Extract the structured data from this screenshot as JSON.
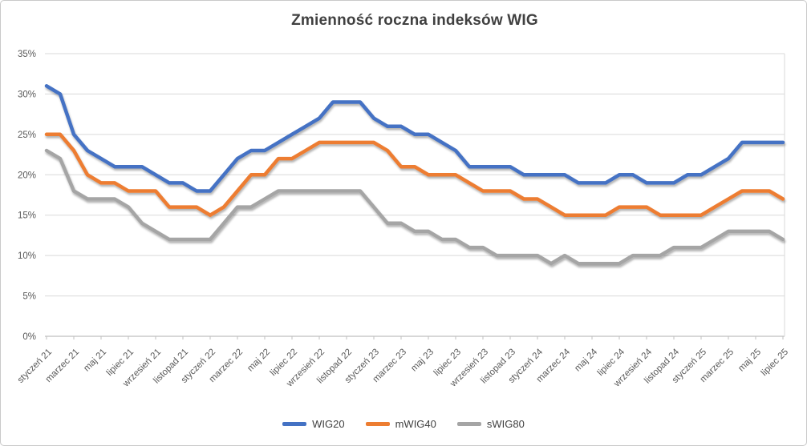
{
  "chart": {
    "title": "Zmienność roczna indeksów WIG"
  },
  "chart_data": {
    "type": "line",
    "title": "Zmienność roczna indeksów WIG",
    "x_tick_labels": [
      "styczeń 21",
      "marzec 21",
      "maj 21",
      "lipiec 21",
      "wrzesień 21",
      "listopad 21",
      "styczeń 22",
      "marzec 22",
      "maj 22",
      "lipiec 22",
      "wrzesień 22",
      "listopad 22",
      "styczeń 23",
      "marzec 23",
      "maj 23",
      "lipiec 23",
      "wrzesień 23",
      "listopad 23",
      "styczeń 24",
      "marzec 24",
      "maj 24",
      "lipiec 24",
      "wrzesień 24",
      "listopad 24",
      "styczeń 25",
      "marzec 25",
      "maj 25",
      "lipiec 25"
    ],
    "points_per_tick": 2,
    "y_tick_labels": [
      "0%",
      "5%",
      "10%",
      "15%",
      "20%",
      "25%",
      "30%",
      "35%"
    ],
    "ylim": [
      0,
      35
    ],
    "y_unit": "%",
    "grid": true,
    "legend_position": "bottom",
    "series": [
      {
        "name": "WIG20",
        "color": "#4472C4",
        "values": [
          31,
          30,
          25,
          23,
          22,
          21,
          21,
          21,
          20,
          19,
          19,
          18,
          18,
          20,
          22,
          23,
          23,
          24,
          25,
          26,
          27,
          29,
          29,
          29,
          27,
          26,
          26,
          25,
          25,
          24,
          23,
          21,
          21,
          21,
          21,
          20,
          20,
          20,
          20,
          19,
          19,
          19,
          20,
          20,
          19,
          19,
          19,
          20,
          20,
          21,
          22,
          24,
          24,
          24,
          24
        ]
      },
      {
        "name": "mWIG40",
        "color": "#ED7D31",
        "values": [
          25,
          25,
          23,
          20,
          19,
          19,
          18,
          18,
          18,
          16,
          16,
          16,
          15,
          16,
          18,
          20,
          20,
          22,
          22,
          23,
          24,
          24,
          24,
          24,
          24,
          23,
          21,
          21,
          20,
          20,
          20,
          19,
          18,
          18,
          18,
          17,
          17,
          16,
          15,
          15,
          15,
          15,
          16,
          16,
          16,
          15,
          15,
          15,
          15,
          16,
          17,
          18,
          18,
          18,
          17
        ]
      },
      {
        "name": "sWIG80",
        "color": "#A5A5A5",
        "values": [
          23,
          22,
          18,
          17,
          17,
          17,
          16,
          14,
          13,
          12,
          12,
          12,
          12,
          14,
          16,
          16,
          17,
          18,
          18,
          18,
          18,
          18,
          18,
          18,
          16,
          14,
          14,
          13,
          13,
          12,
          12,
          11,
          11,
          10,
          10,
          10,
          10,
          9,
          10,
          9,
          9,
          9,
          9,
          10,
          10,
          10,
          11,
          11,
          11,
          12,
          13,
          13,
          13,
          13,
          12
        ]
      }
    ],
    "colors": {
      "gridline": "#D9D9D9",
      "axis_line": "#BFBFBF",
      "axis_labels": "#595959",
      "title": "#404040"
    }
  }
}
